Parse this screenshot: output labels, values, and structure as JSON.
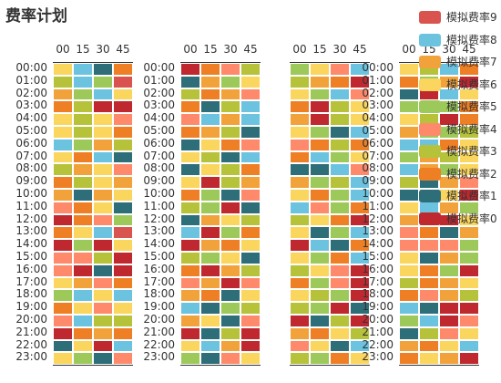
{
  "title": "费率计划",
  "chart_data": {
    "type": "heatmap",
    "title": "费率计划",
    "minute_labels": [
      "00",
      "15",
      "30",
      "45"
    ],
    "hour_labels": [
      "00:00",
      "01:00",
      "02:00",
      "03:00",
      "04:00",
      "05:00",
      "06:00",
      "07:00",
      "08:00",
      "09:00",
      "10:00",
      "11:00",
      "12:00",
      "13:00",
      "14:00",
      "15:00",
      "16:00",
      "17:00",
      "18:00",
      "19:00",
      "20:00",
      "21:00",
      "22:00",
      "23:00"
    ],
    "legend": [
      {
        "name": "模拟费率9",
        "color": "#d9534f"
      },
      {
        "name": "模拟费率8",
        "color": "#6cc3e0"
      },
      {
        "name": "模拟费率7",
        "color": "#f2a23a"
      },
      {
        "name": "模拟费率6",
        "color": "#fbd65e"
      },
      {
        "name": "模拟费率5",
        "color": "#9dc95a"
      },
      {
        "name": "模拟费率4",
        "color": "#ff8a6b"
      },
      {
        "name": "模拟费率3",
        "color": "#b6c23a"
      },
      {
        "name": "模拟费率2",
        "color": "#ee7f25"
      },
      {
        "name": "模拟费率1",
        "color": "#2e6e79"
      },
      {
        "name": "模拟费率0",
        "color": "#c0282f"
      }
    ],
    "panels": [
      {
        "hour_labels_visible": true,
        "rows": [
          [
            6,
            8,
            1,
            2
          ],
          [
            3,
            8,
            5,
            9
          ],
          [
            7,
            5,
            8,
            6
          ],
          [
            2,
            3,
            0,
            0
          ],
          [
            6,
            3,
            6,
            4
          ],
          [
            6,
            3,
            6,
            2
          ],
          [
            8,
            5,
            7,
            3
          ],
          [
            6,
            2,
            8,
            1
          ],
          [
            3,
            7,
            6,
            4
          ],
          [
            2,
            3,
            6,
            7
          ],
          [
            7,
            1,
            7,
            6
          ],
          [
            4,
            2,
            6,
            1
          ],
          [
            0,
            2,
            4,
            5
          ],
          [
            2,
            6,
            8,
            9
          ],
          [
            0,
            5,
            0,
            6
          ],
          [
            4,
            4,
            3,
            0
          ],
          [
            4,
            0,
            1,
            0
          ],
          [
            6,
            7,
            4,
            2
          ],
          [
            5,
            8,
            6,
            8
          ],
          [
            2,
            6,
            4,
            6
          ],
          [
            4,
            8,
            3,
            3
          ],
          [
            0,
            2,
            7,
            2
          ],
          [
            1,
            6,
            0,
            8
          ],
          [
            6,
            5,
            1,
            4
          ]
        ]
      },
      {
        "hour_labels_visible": true,
        "rows": [
          [
            0,
            2,
            4,
            3
          ],
          [
            1,
            7,
            5,
            6
          ],
          [
            3,
            2,
            7,
            4
          ],
          [
            2,
            1,
            3,
            8
          ],
          [
            4,
            8,
            7,
            8
          ],
          [
            2,
            7,
            3,
            1
          ],
          [
            1,
            6,
            2,
            4
          ],
          [
            6,
            3,
            1,
            8
          ],
          [
            1,
            6,
            3,
            2
          ],
          [
            6,
            0,
            3,
            7
          ],
          [
            2,
            5,
            1,
            4
          ],
          [
            3,
            5,
            0,
            1
          ],
          [
            1,
            7,
            6,
            3
          ],
          [
            8,
            0,
            5,
            2
          ],
          [
            0,
            7,
            2,
            6
          ],
          [
            3,
            5,
            6,
            1
          ],
          [
            2,
            0,
            7,
            3
          ],
          [
            4,
            7,
            0,
            4
          ],
          [
            7,
            2,
            1,
            6
          ],
          [
            8,
            1,
            5,
            3
          ],
          [
            7,
            6,
            1,
            4
          ],
          [
            0,
            1,
            3,
            0
          ],
          [
            6,
            8,
            7,
            0
          ],
          [
            5,
            1,
            4,
            6
          ]
        ]
      },
      {
        "hour_labels_visible": false,
        "rows": [
          [
            5,
            6,
            4,
            8
          ],
          [
            3,
            7,
            2,
            0
          ],
          [
            6,
            5,
            8,
            4
          ],
          [
            2,
            0,
            3,
            6
          ],
          [
            7,
            0,
            3,
            6
          ],
          [
            6,
            5,
            1,
            8
          ],
          [
            4,
            2,
            3,
            2
          ],
          [
            2,
            8,
            5,
            6
          ],
          [
            1,
            1,
            8,
            4
          ],
          [
            7,
            5,
            3,
            8
          ],
          [
            6,
            2,
            5,
            8
          ],
          [
            8,
            4,
            5,
            2
          ],
          [
            3,
            6,
            2,
            0
          ],
          [
            6,
            1,
            5,
            8
          ],
          [
            0,
            8,
            1,
            2
          ],
          [
            6,
            5,
            2,
            8
          ],
          [
            3,
            6,
            4,
            0
          ],
          [
            2,
            5,
            4,
            0
          ],
          [
            6,
            3,
            5,
            0
          ],
          [
            3,
            5,
            0,
            1
          ],
          [
            0,
            1,
            3,
            0
          ],
          [
            7,
            2,
            6,
            3
          ],
          [
            4,
            6,
            1,
            8
          ],
          [
            3,
            5,
            2,
            6
          ]
        ]
      },
      {
        "hour_labels_visible": true,
        "rows": [
          [
            6,
            3,
            8,
            2
          ],
          [
            2,
            5,
            7,
            0
          ],
          [
            1,
            0,
            8,
            6
          ],
          [
            5,
            6,
            5,
            2
          ],
          [
            6,
            3,
            0,
            2
          ],
          [
            7,
            5,
            5,
            3
          ],
          [
            8,
            8,
            2,
            6
          ],
          [
            5,
            7,
            3,
            6
          ],
          [
            8,
            7,
            5,
            6
          ],
          [
            3,
            1,
            7,
            4
          ],
          [
            1,
            3,
            6,
            0
          ],
          [
            6,
            8,
            7,
            5
          ],
          [
            7,
            8,
            0,
            6
          ],
          [
            4,
            2,
            1,
            7
          ],
          [
            4,
            4,
            4,
            5
          ],
          [
            6,
            1,
            7,
            5
          ],
          [
            6,
            2,
            5,
            0
          ],
          [
            3,
            2,
            7,
            6
          ],
          [
            2,
            4,
            7,
            3
          ],
          [
            8,
            1,
            0,
            0
          ],
          [
            5,
            8,
            0,
            4
          ],
          [
            1,
            3,
            4,
            6
          ],
          [
            7,
            2,
            6,
            8
          ],
          [
            2,
            6,
            7,
            0
          ]
        ]
      }
    ]
  }
}
